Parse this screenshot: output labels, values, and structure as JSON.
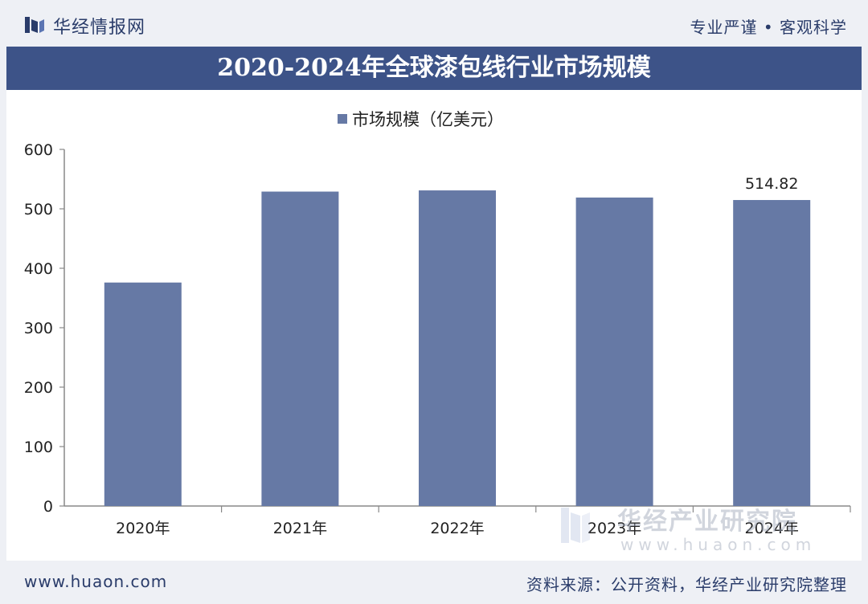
{
  "header": {
    "brand": "华经情报网",
    "slogan": "专业严谨 • 客观科学",
    "logo_icon": "book-bars-icon"
  },
  "footer": {
    "site": "www.huaon.com",
    "source": "资料来源：公开资料，华经产业研究院整理"
  },
  "watermark": {
    "text": "华经产业研究院",
    "url": "www.huaon.com"
  },
  "colors": {
    "accent": "#3d5388",
    "bar": "#6679a5",
    "axis": "#888888"
  },
  "chart_data": {
    "type": "bar",
    "title": "2020-2024年全球漆包线行业市场规模",
    "categories": [
      "2020年",
      "2021年",
      "2022年",
      "2023年",
      "2024年"
    ],
    "series": [
      {
        "name": "市场规模（亿美元）",
        "values": [
          376,
          529,
          531,
          519,
          514.82
        ]
      }
    ],
    "data_labels": [
      "",
      "",
      "",
      "",
      "514.82"
    ],
    "yticks": [
      "0",
      "100",
      "200",
      "300",
      "400",
      "500",
      "600"
    ],
    "ylim": [
      0,
      600
    ],
    "xlabel": "",
    "ylabel": "",
    "legend": "top-center",
    "grid": false
  }
}
